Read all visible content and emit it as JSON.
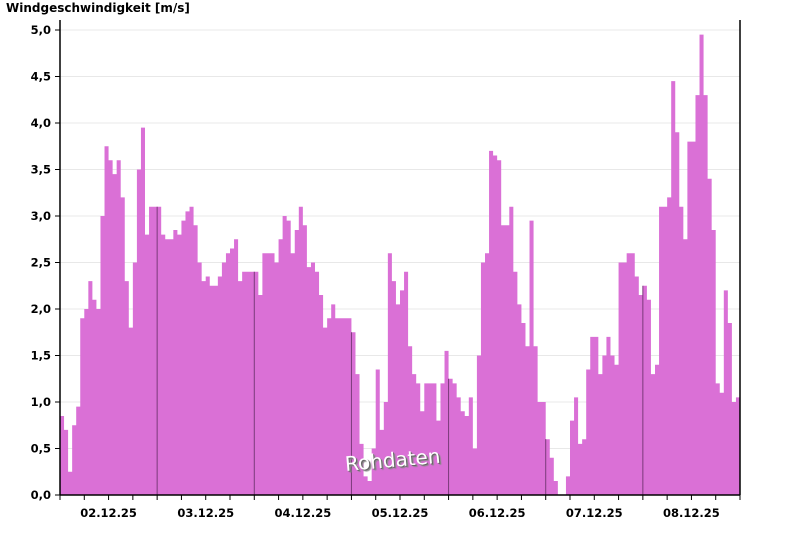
{
  "chart_data": {
    "type": "area",
    "title": "Windgeschwindigkeit [m/s]",
    "ylabel": "Windgeschwindigkeit [m/s]",
    "ylim": [
      0,
      5
    ],
    "yticks": [
      "0,0",
      "0,5",
      "1,0",
      "1,5",
      "2,0",
      "2,5",
      "3,0",
      "3,5",
      "4,0",
      "4,5",
      "5,0"
    ],
    "grid": true,
    "color": "#da70d6",
    "day_line_color": "#7a3a7a",
    "annotation": "Rohdaten",
    "days": [
      {
        "date": "02.12.25",
        "hourly": [
          0.85,
          0.7,
          0.25,
          0.75,
          0.95,
          1.9,
          2.0,
          2.3,
          2.1,
          2.0,
          3.0,
          3.75,
          3.6,
          3.45,
          3.6,
          3.2,
          2.3,
          1.8,
          2.5,
          3.5,
          3.95,
          2.8,
          3.1,
          3.1
        ]
      },
      {
        "date": "03.12.25",
        "hourly": [
          3.1,
          2.8,
          2.75,
          2.75,
          2.85,
          2.8,
          2.95,
          3.05,
          3.1,
          2.9,
          2.5,
          2.3,
          2.35,
          2.25,
          2.25,
          2.35,
          2.5,
          2.6,
          2.65,
          2.75,
          2.3,
          2.4,
          2.4,
          2.4
        ]
      },
      {
        "date": "04.12.25",
        "hourly": [
          2.4,
          2.15,
          2.6,
          2.6,
          2.6,
          2.5,
          2.75,
          3.0,
          2.95,
          2.6,
          2.85,
          3.1,
          2.9,
          2.45,
          2.5,
          2.4,
          2.15,
          1.8,
          1.9,
          2.05,
          1.9,
          1.9,
          1.9,
          1.9
        ]
      },
      {
        "date": "05.12.25",
        "hourly": [
          1.75,
          1.3,
          0.55,
          0.2,
          0.15,
          0.5,
          1.35,
          0.7,
          1.0,
          2.6,
          2.3,
          2.05,
          2.2,
          2.4,
          1.6,
          1.3,
          1.2,
          0.9,
          1.2,
          1.2,
          1.2,
          0.8,
          1.2,
          1.55
        ]
      },
      {
        "date": "06.12.25",
        "hourly": [
          1.25,
          1.2,
          1.05,
          0.9,
          0.85,
          1.05,
          0.5,
          1.5,
          2.5,
          2.6,
          3.7,
          3.65,
          3.6,
          2.9,
          2.9,
          3.1,
          2.4,
          2.05,
          1.85,
          1.6,
          2.95,
          1.6,
          1.0,
          1.0
        ]
      },
      {
        "date": "07.12.25",
        "hourly": [
          0.6,
          0.4,
          0.15,
          0.0,
          0.0,
          0.2,
          0.8,
          1.05,
          0.55,
          0.6,
          1.35,
          1.7,
          1.7,
          1.3,
          1.5,
          1.7,
          1.5,
          1.4,
          2.5,
          2.5,
          2.6,
          2.6,
          2.35,
          2.15
        ]
      },
      {
        "date": "08.12.25",
        "hourly": [
          2.25,
          2.1,
          1.3,
          1.4,
          3.1,
          3.1,
          3.2,
          4.45,
          3.9,
          3.1,
          2.75,
          3.8,
          3.8,
          4.3,
          4.95,
          4.3,
          3.4,
          2.85,
          1.2,
          1.1,
          2.2,
          1.85,
          1.0,
          1.05
        ]
      }
    ]
  }
}
